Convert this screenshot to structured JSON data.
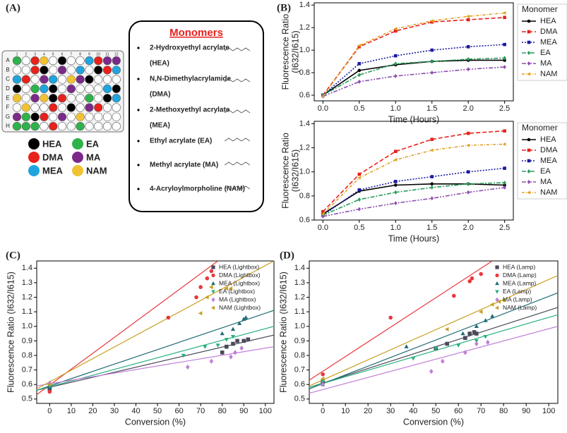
{
  "panel_labels": [
    "(A)",
    "(B)",
    "(C)",
    "(D)"
  ],
  "plate": {
    "rows": [
      "A",
      "B",
      "C",
      "D",
      "E",
      "F",
      "G",
      "H"
    ],
    "columns": [
      1,
      2,
      3,
      4,
      5,
      6,
      7,
      8,
      9,
      10,
      11,
      12
    ]
  },
  "plate_legend": [
    {
      "label": "HEA",
      "color": "#000000"
    },
    {
      "label": "EA",
      "color": "#2db34a"
    },
    {
      "label": "DMA",
      "color": "#e8211d"
    },
    {
      "label": "MA",
      "color": "#7b2a8a"
    },
    {
      "label": "MEA",
      "color": "#1ea5e0"
    },
    {
      "label": "NAM",
      "color": "#f1c232"
    }
  ],
  "monomers": {
    "title": "Monomers",
    "items": [
      [
        "2-Hydroxyethyl acrylate",
        "(HEA)"
      ],
      [
        "N,N-Dimethylacrylamide",
        "(DMA)"
      ],
      [
        "2-Methoxyethyl acrylate",
        "(MEA)"
      ],
      [
        "Ethyl acrylate (EA)"
      ],
      [
        "Methyl acrylate (MA)"
      ],
      [
        "4-Acryloylmorpholine (NAM)"
      ]
    ]
  },
  "chart_data": [
    {
      "type": "line",
      "xlabel": "Time (Hours)",
      "ylabel": [
        "Fluorescence Ratio",
        "(I632/I615)"
      ],
      "legend_title": "Monomer",
      "x": [
        0,
        0.5,
        1,
        1.5,
        2,
        2.5
      ],
      "xlim": [
        -0.12,
        2.62
      ],
      "xticks": [
        {
          "value": 0,
          "label": "0.0"
        },
        0.5,
        {
          "value": 1,
          "label": "1.0"
        },
        1.5,
        {
          "value": 2,
          "label": "2.0"
        },
        2.5
      ],
      "ylim": [
        0.55,
        1.42
      ],
      "yticks": [
        0.6,
        0.8,
        {
          "value": 1,
          "label": "1.0"
        },
        1.2,
        1.4
      ],
      "series": [
        {
          "name": "HEA",
          "color": "#000000",
          "dash": "none",
          "marker": "circle",
          "values": [
            0.6,
            0.82,
            0.87,
            0.9,
            0.91,
            0.91
          ]
        },
        {
          "name": "DMA",
          "color": "#e8211d",
          "dash": "6,3",
          "marker": "square",
          "values": [
            0.6,
            1.03,
            1.17,
            1.25,
            1.27,
            1.29
          ]
        },
        {
          "name": "MEA",
          "color": "#1a1aa0",
          "dash": "2,2",
          "marker": "square",
          "values": [
            0.6,
            0.88,
            0.95,
            1.0,
            1.03,
            1.05
          ]
        },
        {
          "name": "EA",
          "color": "#2a9d5b",
          "dash": "6,2,2,2",
          "marker": "diamond",
          "values": [
            0.6,
            0.78,
            0.88,
            0.9,
            0.92,
            0.93
          ]
        },
        {
          "name": "MA",
          "color": "#8e4fb0",
          "dash": "6,2,2,2,2,2",
          "marker": "diamond",
          "values": [
            0.59,
            0.72,
            0.77,
            0.8,
            0.83,
            0.85
          ]
        },
        {
          "name": "NAM",
          "color": "#e0a020",
          "dash": "4,2,1,2",
          "marker": "triangle-left",
          "values": [
            0.59,
            1.04,
            1.19,
            1.26,
            1.3,
            1.33
          ]
        }
      ]
    },
    {
      "type": "line",
      "xlabel": "Time (Hours)",
      "ylabel": [
        "Fluorescence Ratio",
        "(I632/I615)"
      ],
      "legend_title": "Monomer",
      "x": [
        0,
        0.5,
        1,
        1.5,
        2,
        2.5
      ],
      "xlim": [
        -0.12,
        2.62
      ],
      "xticks": [
        {
          "value": 0,
          "label": "0.0"
        },
        0.5,
        {
          "value": 1,
          "label": "1.0"
        },
        1.5,
        {
          "value": 2,
          "label": "2.0"
        },
        2.5
      ],
      "ylim": [
        0.6,
        1.42
      ],
      "yticks": [
        0.6,
        0.8,
        {
          "value": 1,
          "label": "1.0"
        },
        1.2,
        1.4
      ],
      "series": [
        {
          "name": "HEA",
          "color": "#000000",
          "dash": "none",
          "marker": "circle",
          "values": [
            0.65,
            0.84,
            0.89,
            0.9,
            0.9,
            0.89
          ]
        },
        {
          "name": "DMA",
          "color": "#e8211d",
          "dash": "6,3",
          "marker": "square",
          "values": [
            0.67,
            0.98,
            1.17,
            1.27,
            1.32,
            1.34
          ]
        },
        {
          "name": "MEA",
          "color": "#1a1aa0",
          "dash": "2,2",
          "marker": "square",
          "values": [
            0.64,
            0.85,
            0.92,
            0.96,
            1.0,
            1.03
          ]
        },
        {
          "name": "EA",
          "color": "#2a9d5b",
          "dash": "6,2,2,2",
          "marker": "diamond",
          "values": [
            0.64,
            0.77,
            0.83,
            0.87,
            0.9,
            0.91
          ]
        },
        {
          "name": "MA",
          "color": "#8e4fb0",
          "dash": "6,2,2,2,2,2",
          "marker": "diamond",
          "values": [
            0.63,
            0.69,
            0.74,
            0.78,
            0.83,
            0.87
          ]
        },
        {
          "name": "NAM",
          "color": "#e0a020",
          "dash": "4,2,1,2",
          "marker": "triangle-left",
          "values": [
            0.65,
            0.95,
            1.1,
            1.18,
            1.22,
            1.23
          ]
        }
      ]
    },
    {
      "type": "scatter",
      "xlabel": "Conversion (%)",
      "ylabel": "Fluorescence Ratio (I632/I615)",
      "xlim": [
        -6,
        104
      ],
      "xticks": [
        0,
        10,
        20,
        30,
        40,
        50,
        60,
        70,
        80,
        90,
        100
      ],
      "ylim": [
        0.47,
        1.45
      ],
      "yticks": [
        0.5,
        0.6,
        0.7,
        0.8,
        0.9,
        {
          "value": 1,
          "label": "1.0"
        },
        1.1,
        1.2,
        1.3,
        1.4
      ],
      "series": [
        {
          "name": "HEA (Lightbox)",
          "color": "#4a4a5a",
          "marker": "square",
          "x": [
            0,
            80,
            82,
            85,
            87,
            90,
            92
          ],
          "values": [
            0.57,
            0.82,
            0.86,
            0.88,
            0.9,
            0.9,
            0.91
          ],
          "fit": {
            "x": [
              -6,
              104
            ],
            "values": [
              0.56,
              0.94
            ]
          }
        },
        {
          "name": "DMA (Lightbox)",
          "color": "#e8383d",
          "marker": "circle",
          "x": [
            0,
            55,
            68,
            70,
            73,
            75
          ],
          "values": [
            0.55,
            1.06,
            1.2,
            1.27,
            1.33,
            1.38
          ],
          "fit": {
            "x": [
              -6,
              78
            ],
            "values": [
              0.53,
              1.45
            ]
          }
        },
        {
          "name": "MEA (Lightbox)",
          "color": "#1f6b75",
          "marker": "triangle-up",
          "x": [
            0,
            80,
            85,
            88,
            90,
            91
          ],
          "values": [
            0.58,
            0.95,
            0.98,
            1.02,
            1.05,
            1.06
          ],
          "fit": {
            "x": [
              -6,
              104
            ],
            "values": [
              0.56,
              1.11
            ]
          }
        },
        {
          "name": "EA (Lightbox)",
          "color": "#2ab07f",
          "marker": "triangle-down",
          "x": [
            0,
            62,
            72,
            78,
            82,
            85
          ],
          "values": [
            0.59,
            0.8,
            0.86,
            0.87,
            0.91,
            0.93
          ],
          "fit": {
            "x": [
              -6,
              104
            ],
            "values": [
              0.56,
              1.0
            ]
          }
        },
        {
          "name": "MA (Lightbox)",
          "color": "#c07fd8",
          "marker": "diamond",
          "x": [
            0,
            64,
            75,
            84,
            86,
            89
          ],
          "values": [
            0.61,
            0.72,
            0.76,
            0.79,
            0.82,
            0.85
          ],
          "fit": {
            "x": [
              -6,
              104
            ],
            "values": [
              0.59,
              0.86
            ]
          }
        },
        {
          "name": "NAM (Lightbox)",
          "color": "#c8a020",
          "marker": "triangle-left",
          "x": [
            0,
            70,
            73,
            75,
            82,
            84
          ],
          "values": [
            0.6,
            1.09,
            1.2,
            1.27,
            1.26,
            1.26
          ],
          "fit": {
            "x": [
              -6,
              104
            ],
            "values": [
              0.57,
              1.45
            ]
          }
        }
      ]
    },
    {
      "type": "scatter",
      "xlabel": "Conversion (%)",
      "ylabel": "Fluorescence Ratio (I632/I615)",
      "xlim": [
        -6,
        104
      ],
      "xticks": [
        0,
        10,
        20,
        30,
        40,
        50,
        60,
        70,
        80,
        90,
        100
      ],
      "ylim": [
        0.47,
        1.45
      ],
      "yticks": [
        0.5,
        0.6,
        0.7,
        0.8,
        0.9,
        {
          "value": 1,
          "label": "1.0"
        },
        1.1,
        1.2,
        1.3,
        1.4
      ],
      "series": [
        {
          "name": "HEA (Lamp)",
          "color": "#4a4a5a",
          "marker": "square",
          "x": [
            0,
            50,
            55,
            63,
            65,
            67,
            68
          ],
          "values": [
            0.62,
            0.85,
            0.88,
            0.92,
            0.95,
            0.96,
            0.95
          ],
          "fit": {
            "x": [
              -6,
              104
            ],
            "values": [
              0.58,
              1.13
            ]
          }
        },
        {
          "name": "DMA (Lamp)",
          "color": "#e8383d",
          "marker": "circle",
          "x": [
            0,
            30,
            58,
            65,
            66,
            70
          ],
          "values": [
            0.67,
            1.06,
            1.21,
            1.31,
            1.33,
            1.36
          ],
          "fit": {
            "x": [
              -6,
              75
            ],
            "values": [
              0.63,
              1.45
            ]
          }
        },
        {
          "name": "MEA (Lamp)",
          "color": "#1f6b75",
          "marker": "triangle-up",
          "x": [
            0,
            37,
            62,
            68,
            72,
            75
          ],
          "values": [
            0.6,
            0.86,
            0.95,
            1.0,
            1.04,
            1.07
          ],
          "fit": {
            "x": [
              -6,
              104
            ],
            "values": [
              0.57,
              1.23
            ]
          }
        },
        {
          "name": "EA (Lamp)",
          "color": "#2ab07f",
          "marker": "triangle-down",
          "x": [
            0,
            40,
            50,
            60,
            68,
            72
          ],
          "values": [
            0.62,
            0.78,
            0.85,
            0.87,
            0.9,
            0.93
          ],
          "fit": {
            "x": [
              -6,
              104
            ],
            "values": [
              0.58,
              1.08
            ]
          }
        },
        {
          "name": "MA (Lamp)",
          "color": "#c07fd8",
          "marker": "diamond",
          "x": [
            0,
            48,
            53,
            63,
            68,
            73
          ],
          "values": [
            0.6,
            0.69,
            0.76,
            0.82,
            0.88,
            0.89
          ],
          "fit": {
            "x": [
              -6,
              104
            ],
            "values": [
              0.54,
              1.0
            ]
          }
        },
        {
          "name": "NAM (Lamp)",
          "color": "#c8a020",
          "marker": "triangle-left",
          "x": [
            0,
            55,
            70,
            75,
            78,
            80
          ],
          "values": [
            0.64,
            0.98,
            1.1,
            1.15,
            1.17,
            1.18
          ],
          "fit": {
            "x": [
              -6,
              104
            ],
            "values": [
              0.59,
              1.35
            ]
          }
        }
      ]
    }
  ]
}
